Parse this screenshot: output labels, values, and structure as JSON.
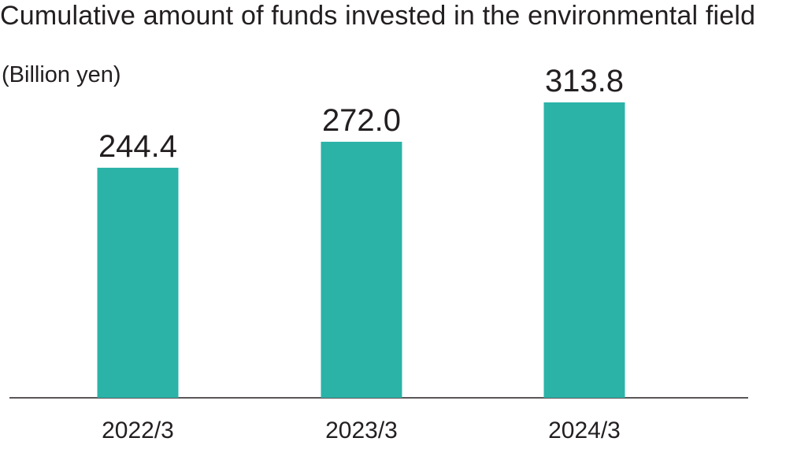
{
  "chart_data": {
    "type": "bar",
    "title": "Cumulative amount of funds invested in the environmental field",
    "unit_label": "(Billion yen)",
    "categories": [
      "2022/3",
      "2023/3",
      "2024/3"
    ],
    "values": [
      244.4,
      272.0,
      313.8
    ],
    "value_labels": [
      "244.4",
      "272.0",
      "313.8"
    ],
    "ylim": [
      0,
      313.8
    ],
    "bar_color": "#2bb3a8",
    "grid": false,
    "legend": "none"
  }
}
